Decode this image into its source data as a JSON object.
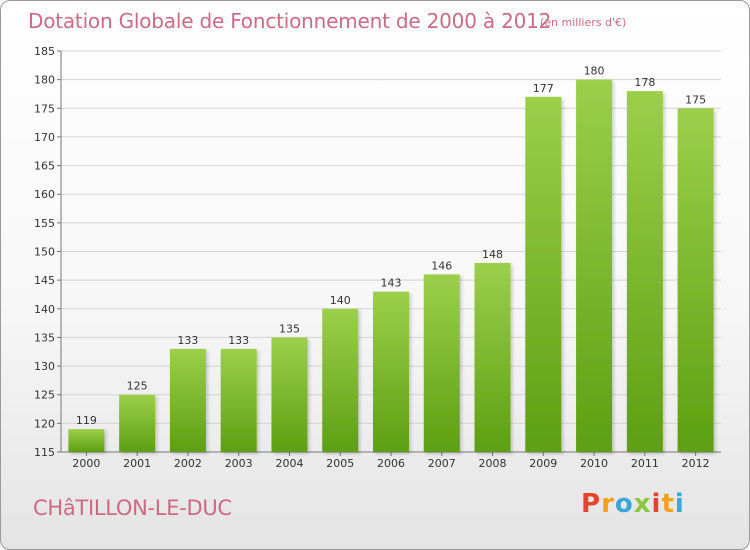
{
  "header": {
    "title": "Dotation Globale de Fonctionnement de 2000 à 2012",
    "subtitle": "(en milliers d'€)"
  },
  "footer": {
    "commune": "CHâTILLON-LE-DUC",
    "logo": "Proxiti",
    "logo_colors": [
      "#e8432f",
      "#f4a21c",
      "#3aa7d9",
      "#8cc63f",
      "#e8432f",
      "#f4a21c",
      "#3aa7d9"
    ]
  },
  "colors": {
    "bar_top": "#9ccf4b",
    "bar_bottom": "#5d9f12",
    "text_accent": "#cc6a84",
    "grid": "#d4d4d4"
  },
  "chart_data": {
    "type": "bar",
    "title": "Dotation Globale de Fonctionnement de 2000 à 2012",
    "subtitle": "(en milliers d'€)",
    "xlabel": "",
    "ylabel": "",
    "categories": [
      "2000",
      "2001",
      "2002",
      "2003",
      "2004",
      "2005",
      "2006",
      "2007",
      "2008",
      "2009",
      "2010",
      "2011",
      "2012"
    ],
    "values": [
      119,
      125,
      133,
      133,
      135,
      140,
      143,
      146,
      148,
      177,
      180,
      178,
      175
    ],
    "ylim": [
      115,
      185
    ],
    "yticks": [
      115,
      120,
      125,
      130,
      135,
      140,
      145,
      150,
      155,
      160,
      165,
      170,
      175,
      180,
      185
    ],
    "grid": true,
    "data_labels": true
  }
}
